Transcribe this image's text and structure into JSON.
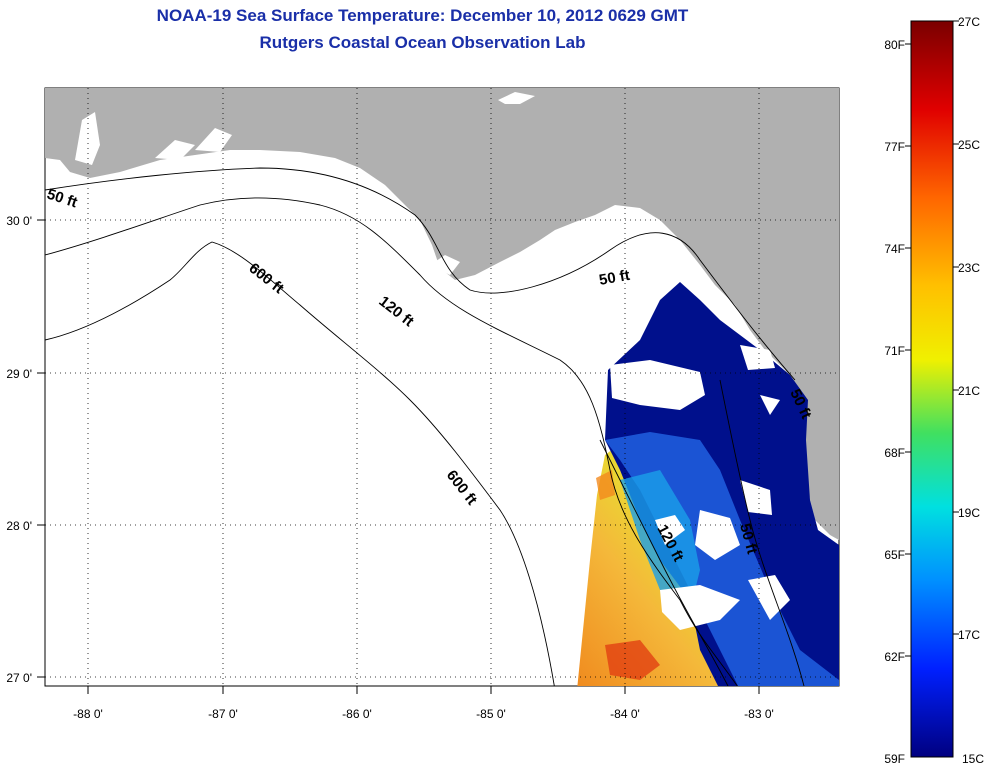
{
  "header": {
    "title": "NOAA-19 Sea Surface Temperature:  December 10, 2012 0629 GMT",
    "subtitle": "Rutgers Coastal Ocean Observation Lab"
  },
  "map": {
    "lat_labels": [
      "30 0'",
      "29 0'",
      "28 0'",
      "27 0'"
    ],
    "lon_labels": [
      "-88 0'",
      "-87 0'",
      "-86 0'",
      "-85 0'",
      "-84 0'",
      "-83 0'"
    ],
    "depth_labels": [
      "50 ft",
      "600 ft",
      "120 ft",
      "50 ft",
      "600 ft",
      "120 ft",
      "50 ft",
      "50 ft"
    ],
    "colors": {
      "land": "#b0b0b0",
      "cloud": "#ffffff",
      "cold": "#00108c",
      "warm": "#f2a02a"
    }
  },
  "colorbar": {
    "fahrenheit": [
      "80F",
      "77F",
      "74F",
      "71F",
      "68F",
      "65F",
      "62F",
      "59F"
    ],
    "celsius": [
      "27C",
      "25C",
      "23C",
      "21C",
      "19C",
      "17C",
      "15C"
    ]
  }
}
